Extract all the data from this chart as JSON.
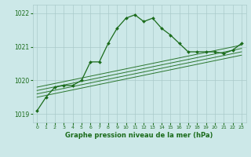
{
  "title": "Graphe pression niveau de la mer (hPa)",
  "bg_color": "#cce8e8",
  "line_color": "#1a6b1a",
  "grid_color": "#aacaca",
  "text_color": "#1a6b1a",
  "xlim": [
    -0.5,
    23.5
  ],
  "ylim": [
    1018.75,
    1022.25
  ],
  "yticks": [
    1019,
    1020,
    1021,
    1022
  ],
  "xticks": [
    0,
    1,
    2,
    3,
    4,
    5,
    6,
    7,
    8,
    9,
    10,
    11,
    12,
    13,
    14,
    15,
    16,
    17,
    18,
    19,
    20,
    21,
    22,
    23
  ],
  "main_series_x": [
    0,
    1,
    2,
    3,
    4,
    5,
    6,
    7,
    8,
    9,
    10,
    11,
    12,
    13,
    14,
    15,
    16,
    17,
    18,
    19,
    20,
    21,
    22,
    23
  ],
  "main_series_y": [
    1019.1,
    1019.5,
    1019.8,
    1019.85,
    1019.85,
    1020.0,
    1020.55,
    1020.55,
    1021.1,
    1021.55,
    1021.85,
    1021.95,
    1021.75,
    1021.85,
    1021.55,
    1021.35,
    1021.1,
    1020.85,
    1020.85,
    1020.85,
    1020.85,
    1020.8,
    1020.9,
    1021.1
  ],
  "trend_lines": [
    {
      "x": [
        0,
        23
      ],
      "y": [
        1019.5,
        1020.75
      ]
    },
    {
      "x": [
        0,
        23
      ],
      "y": [
        1019.6,
        1020.85
      ]
    },
    {
      "x": [
        0,
        23
      ],
      "y": [
        1019.7,
        1020.95
      ]
    },
    {
      "x": [
        0,
        23
      ],
      "y": [
        1019.8,
        1021.05
      ]
    }
  ],
  "xlabel_fontsize": 6.0,
  "ytick_fontsize": 5.5,
  "xtick_fontsize": 4.5
}
